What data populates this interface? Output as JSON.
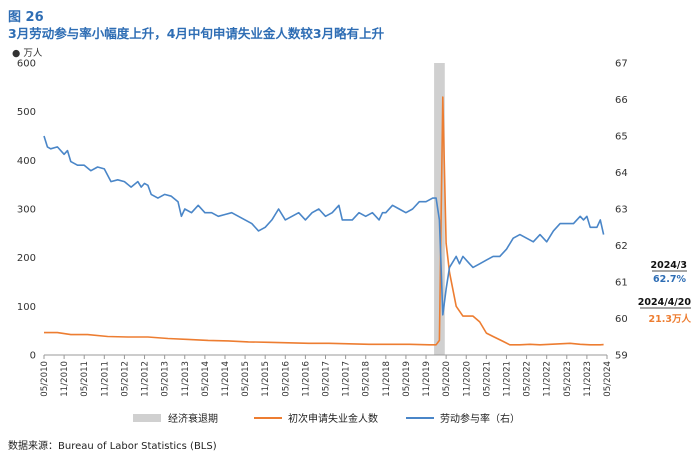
{
  "figure": {
    "number": "图 26",
    "title": "3月劳动参与率小幅度上升，4月中旬申请失业金人数较3月略有上升",
    "unit": "万人",
    "source": "数据来源：Bureau of Labor Statistics (BLS)"
  },
  "colors": {
    "title": "#2e6db4",
    "participation": "#4a86c8",
    "claims": "#ed7d31",
    "recession": "#d0d0d0"
  },
  "chart_data": {
    "type": "line",
    "x_ticks": [
      "05/2010",
      "11/2010",
      "05/2011",
      "11/2011",
      "05/2012",
      "11/2012",
      "05/2013",
      "11/2013",
      "05/2014",
      "11/2014",
      "05/2015",
      "11/2015",
      "05/2016",
      "11/2016",
      "05/2017",
      "11/2017",
      "05/2018",
      "11/2018",
      "05/2019",
      "11/2019",
      "05/2020",
      "11/2020",
      "05/2021",
      "11/2021",
      "05/2022",
      "11/2022",
      "05/2023",
      "11/2023",
      "05/2024"
    ],
    "y_left": {
      "ticks": [
        0,
        100,
        200,
        300,
        400,
        500,
        600
      ],
      "lim": [
        0,
        600
      ]
    },
    "y_right": {
      "ticks": [
        59,
        60,
        61,
        62,
        63,
        64,
        65,
        66,
        67
      ],
      "lim": [
        59,
        67
      ]
    },
    "recession": {
      "start": "02/2020",
      "end": "04/2020",
      "label": "经济衰退期"
    },
    "series": [
      {
        "name": "初次申请失业金人数",
        "axis": "left",
        "points": [
          [
            "05/2010",
            46
          ],
          [
            "09/2010",
            46
          ],
          [
            "01/2011",
            42
          ],
          [
            "06/2011",
            42
          ],
          [
            "12/2011",
            38
          ],
          [
            "06/2012",
            37
          ],
          [
            "12/2012",
            37
          ],
          [
            "06/2013",
            34
          ],
          [
            "12/2013",
            32
          ],
          [
            "06/2014",
            30
          ],
          [
            "12/2014",
            29
          ],
          [
            "06/2015",
            27
          ],
          [
            "12/2015",
            26
          ],
          [
            "06/2016",
            25
          ],
          [
            "12/2016",
            24
          ],
          [
            "06/2017",
            24
          ],
          [
            "12/2017",
            23
          ],
          [
            "06/2018",
            22
          ],
          [
            "12/2018",
            22
          ],
          [
            "06/2019",
            22
          ],
          [
            "12/2019",
            21
          ],
          [
            "02/2020",
            21
          ],
          [
            "03/2020",
            30
          ],
          [
            "04/2020",
            530
          ],
          [
            "05/2020",
            230
          ],
          [
            "06/2020",
            170
          ],
          [
            "08/2020",
            100
          ],
          [
            "10/2020",
            80
          ],
          [
            "01/2021",
            80
          ],
          [
            "03/2021",
            68
          ],
          [
            "05/2021",
            45
          ],
          [
            "07/2021",
            38
          ],
          [
            "10/2021",
            28
          ],
          [
            "12/2021",
            21
          ],
          [
            "03/2022",
            21
          ],
          [
            "06/2022",
            22
          ],
          [
            "09/2022",
            21
          ],
          [
            "12/2022",
            22
          ],
          [
            "03/2023",
            23
          ],
          [
            "06/2023",
            24
          ],
          [
            "09/2023",
            22
          ],
          [
            "12/2023",
            21
          ],
          [
            "03/2024",
            21
          ],
          [
            "04/2024",
            21.3
          ]
        ]
      },
      {
        "name": "劳动参与率（右）",
        "axis": "right",
        "points": [
          [
            "05/2010",
            65.0
          ],
          [
            "06/2010",
            64.7
          ],
          [
            "07/2010",
            64.65
          ],
          [
            "09/2010",
            64.7
          ],
          [
            "11/2010",
            64.5
          ],
          [
            "12/2010",
            64.6
          ],
          [
            "01/2011",
            64.3
          ],
          [
            "03/2011",
            64.2
          ],
          [
            "05/2011",
            64.2
          ],
          [
            "07/2011",
            64.05
          ],
          [
            "09/2011",
            64.15
          ],
          [
            "11/2011",
            64.1
          ],
          [
            "01/2012",
            63.75
          ],
          [
            "03/2012",
            63.8
          ],
          [
            "05/2012",
            63.75
          ],
          [
            "07/2012",
            63.6
          ],
          [
            "09/2012",
            63.75
          ],
          [
            "10/2012",
            63.6
          ],
          [
            "11/2012",
            63.7
          ],
          [
            "12/2012",
            63.65
          ],
          [
            "01/2013",
            63.4
          ],
          [
            "03/2013",
            63.3
          ],
          [
            "05/2013",
            63.4
          ],
          [
            "07/2013",
            63.35
          ],
          [
            "09/2013",
            63.2
          ],
          [
            "10/2013",
            62.8
          ],
          [
            "11/2013",
            63.0
          ],
          [
            "01/2014",
            62.9
          ],
          [
            "03/2014",
            63.1
          ],
          [
            "05/2014",
            62.9
          ],
          [
            "07/2014",
            62.9
          ],
          [
            "09/2014",
            62.8
          ],
          [
            "11/2014",
            62.85
          ],
          [
            "01/2015",
            62.9
          ],
          [
            "03/2015",
            62.8
          ],
          [
            "05/2015",
            62.7
          ],
          [
            "07/2015",
            62.6
          ],
          [
            "09/2015",
            62.4
          ],
          [
            "11/2015",
            62.5
          ],
          [
            "01/2016",
            62.7
          ],
          [
            "03/2016",
            63.0
          ],
          [
            "05/2016",
            62.7
          ],
          [
            "07/2016",
            62.8
          ],
          [
            "09/2016",
            62.9
          ],
          [
            "11/2016",
            62.7
          ],
          [
            "01/2017",
            62.9
          ],
          [
            "03/2017",
            63.0
          ],
          [
            "05/2017",
            62.8
          ],
          [
            "07/2017",
            62.9
          ],
          [
            "09/2017",
            63.1
          ],
          [
            "10/2017",
            62.7
          ],
          [
            "11/2017",
            62.7
          ],
          [
            "01/2018",
            62.7
          ],
          [
            "03/2018",
            62.9
          ],
          [
            "05/2018",
            62.8
          ],
          [
            "07/2018",
            62.9
          ],
          [
            "09/2018",
            62.7
          ],
          [
            "10/2018",
            62.9
          ],
          [
            "11/2018",
            62.9
          ],
          [
            "01/2019",
            63.1
          ],
          [
            "03/2019",
            63.0
          ],
          [
            "05/2019",
            62.9
          ],
          [
            "07/2019",
            63.0
          ],
          [
            "09/2019",
            63.2
          ],
          [
            "11/2019",
            63.2
          ],
          [
            "01/2020",
            63.3
          ],
          [
            "02/2020",
            63.3
          ],
          [
            "03/2020",
            62.7
          ],
          [
            "04/2020",
            60.1
          ],
          [
            "05/2020",
            60.8
          ],
          [
            "06/2020",
            61.4
          ],
          [
            "08/2020",
            61.7
          ],
          [
            "09/2020",
            61.5
          ],
          [
            "10/2020",
            61.7
          ],
          [
            "12/2020",
            61.5
          ],
          [
            "01/2021",
            61.4
          ],
          [
            "03/2021",
            61.5
          ],
          [
            "05/2021",
            61.6
          ],
          [
            "07/2021",
            61.7
          ],
          [
            "09/2021",
            61.7
          ],
          [
            "11/2021",
            61.9
          ],
          [
            "01/2022",
            62.2
          ],
          [
            "03/2022",
            62.3
          ],
          [
            "05/2022",
            62.2
          ],
          [
            "07/2022",
            62.1
          ],
          [
            "09/2022",
            62.3
          ],
          [
            "11/2022",
            62.1
          ],
          [
            "01/2023",
            62.4
          ],
          [
            "03/2023",
            62.6
          ],
          [
            "05/2023",
            62.6
          ],
          [
            "07/2023",
            62.6
          ],
          [
            "09/2023",
            62.8
          ],
          [
            "10/2023",
            62.7
          ],
          [
            "11/2023",
            62.8
          ],
          [
            "12/2023",
            62.5
          ],
          [
            "01/2024",
            62.5
          ],
          [
            "02/2024",
            62.5
          ],
          [
            "03/2024",
            62.7
          ],
          [
            "04/2024",
            62.3
          ]
        ]
      }
    ],
    "annotations": [
      {
        "date": "2024/3",
        "value": "62.7%",
        "series": "劳动参与率（右）"
      },
      {
        "date": "2024/4/20",
        "value": "21.3万人",
        "series": "初次申请失业金人数"
      }
    ],
    "legend": {
      "position": "bottom"
    },
    "grid": false
  }
}
